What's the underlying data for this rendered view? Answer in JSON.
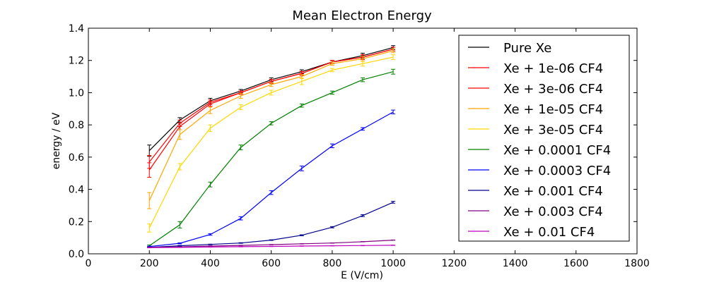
{
  "chart_data": {
    "type": "line",
    "title": "Mean Electron Energy",
    "xlabel": "E (V/cm)",
    "ylabel": "energy / eV",
    "xlim": [
      0,
      1800
    ],
    "ylim": [
      0,
      1.4
    ],
    "xticks": [
      0,
      200,
      400,
      600,
      800,
      1000,
      1200,
      1400,
      1600,
      1800
    ],
    "yticks": [
      0.0,
      0.2,
      0.4,
      0.6,
      0.8,
      1.0,
      1.2,
      1.4
    ],
    "xtick_labels": [
      "0",
      "200",
      "400",
      "600",
      "800",
      "1000",
      "1200",
      "1400",
      "1600",
      "1800"
    ],
    "ytick_labels": [
      "0.0",
      "0.2",
      "0.4",
      "0.6",
      "0.8",
      "1.0",
      "1.2",
      "1.4"
    ],
    "grid": false,
    "legend_position": "top-right",
    "x": [
      200,
      300,
      400,
      500,
      600,
      700,
      800,
      900,
      1000
    ],
    "series": [
      {
        "name": "Pure Xe",
        "color": "#000000",
        "values": [
          0.64,
          0.83,
          0.95,
          1.01,
          1.08,
          1.13,
          1.19,
          1.23,
          1.28
        ],
        "errors": [
          0.035,
          0.015,
          0.015,
          0.01,
          0.012,
          0.012,
          0.01,
          0.015,
          0.012
        ]
      },
      {
        "name": "Xe + 1e-06 CF4",
        "color": "#ff0000",
        "values": [
          0.57,
          0.81,
          0.94,
          1.0,
          1.07,
          1.12,
          1.19,
          1.22,
          1.27
        ],
        "errors": [
          0.04,
          0.02,
          0.015,
          0.01,
          0.012,
          0.012,
          0.01,
          0.015,
          0.012
        ]
      },
      {
        "name": "Xe + 3e-06 CF4",
        "color": "#ff0000",
        "values": [
          0.52,
          0.79,
          0.93,
          1.0,
          1.07,
          1.12,
          1.19,
          1.22,
          1.27
        ],
        "errors": [
          0.045,
          0.02,
          0.015,
          0.01,
          0.012,
          0.012,
          0.01,
          0.015,
          0.012
        ]
      },
      {
        "name": "Xe + 1e-05 CF4",
        "color": "#ffa500",
        "values": [
          0.33,
          0.74,
          0.89,
          0.98,
          1.05,
          1.1,
          1.18,
          1.21,
          1.26
        ],
        "errors": [
          0.05,
          0.03,
          0.02,
          0.015,
          0.012,
          0.012,
          0.01,
          0.015,
          0.012
        ]
      },
      {
        "name": "Xe + 3e-05 CF4",
        "color": "#ffd700",
        "values": [
          0.16,
          0.54,
          0.78,
          0.91,
          1.0,
          1.07,
          1.14,
          1.18,
          1.22
        ],
        "errors": [
          0.025,
          0.02,
          0.02,
          0.015,
          0.015,
          0.02,
          0.01,
          0.015,
          0.015
        ]
      },
      {
        "name": "Xe + 0.0001 CF4",
        "color": "#008000",
        "values": [
          0.05,
          0.18,
          0.43,
          0.66,
          0.81,
          0.92,
          1.0,
          1.08,
          1.13
        ],
        "errors": [
          0.005,
          0.02,
          0.015,
          0.015,
          0.01,
          0.01,
          0.01,
          0.012,
          0.015
        ]
      },
      {
        "name": "Xe + 0.0003 CF4",
        "color": "#0000ff",
        "values": [
          0.045,
          0.065,
          0.12,
          0.22,
          0.38,
          0.53,
          0.67,
          0.775,
          0.88
        ],
        "errors": [
          0.003,
          0.003,
          0.005,
          0.01,
          0.012,
          0.015,
          0.012,
          0.008,
          0.012
        ]
      },
      {
        "name": "Xe + 0.001 CF4",
        "color": "#00008b",
        "values": [
          0.04,
          0.05,
          0.058,
          0.067,
          0.085,
          0.115,
          0.165,
          0.237,
          0.32
        ],
        "errors": [
          0.002,
          0.002,
          0.002,
          0.002,
          0.002,
          0.003,
          0.004,
          0.006,
          0.006
        ]
      },
      {
        "name": "Xe + 0.003 CF4",
        "color": "#800080",
        "values": [
          0.04,
          0.043,
          0.048,
          0.052,
          0.057,
          0.062,
          0.067,
          0.075,
          0.085
        ],
        "errors": [
          0.001,
          0.001,
          0.001,
          0.001,
          0.001,
          0.001,
          0.001,
          0.001,
          0.001
        ]
      },
      {
        "name": "Xe + 0.01 CF4",
        "color": "#bf00bf",
        "values": [
          0.038,
          0.04,
          0.042,
          0.044,
          0.046,
          0.048,
          0.05,
          0.051,
          0.053
        ],
        "errors": [
          0.001,
          0.001,
          0.001,
          0.001,
          0.001,
          0.001,
          0.001,
          0.001,
          0.001
        ]
      }
    ]
  }
}
